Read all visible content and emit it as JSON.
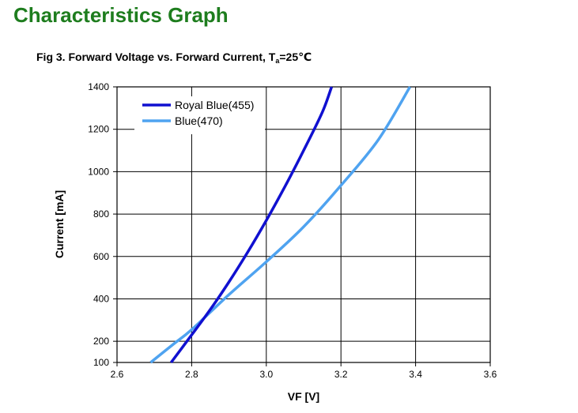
{
  "page": {
    "title": "Characteristics Graph",
    "caption": {
      "prefix": "Fig 3. Forward Voltage vs. Forward Current, T",
      "subscript": "a",
      "suffix": "=25℃"
    }
  },
  "chart_data": {
    "type": "line",
    "xlabel": "VF [V]",
    "ylabel": "Current [mA]",
    "xlim": [
      2.6,
      3.6
    ],
    "ylim": [
      100,
      1400
    ],
    "x_ticks": [
      2.6,
      2.8,
      3.0,
      3.2,
      3.4,
      3.6
    ],
    "x_tick_labels": [
      "2.6",
      "2.8",
      "3.0",
      "3.2",
      "3.4",
      "3.6"
    ],
    "y_ticks": [
      100,
      200,
      400,
      600,
      800,
      1000,
      1200,
      1400
    ],
    "y_tick_labels": [
      "100",
      "200",
      "400",
      "600",
      "800",
      "1000",
      "1200",
      "1400"
    ],
    "grid": true,
    "legend_position": "top-left",
    "series": [
      {
        "name": "Royal Blue(455)",
        "color": "#1010d0",
        "points": [
          [
            2.745,
            100
          ],
          [
            2.8,
            230
          ],
          [
            2.85,
            350
          ],
          [
            2.9,
            480
          ],
          [
            2.95,
            620
          ],
          [
            3.0,
            770
          ],
          [
            3.05,
            930
          ],
          [
            3.1,
            1100
          ],
          [
            3.15,
            1280
          ],
          [
            3.175,
            1400
          ]
        ]
      },
      {
        "name": "Blue(470)",
        "color": "#4fa3f0",
        "points": [
          [
            2.69,
            100
          ],
          [
            2.75,
            185
          ],
          [
            2.8,
            255
          ],
          [
            2.9,
            420
          ],
          [
            3.0,
            575
          ],
          [
            3.1,
            740
          ],
          [
            3.2,
            935
          ],
          [
            3.3,
            1150
          ],
          [
            3.385,
            1400
          ]
        ]
      }
    ]
  }
}
